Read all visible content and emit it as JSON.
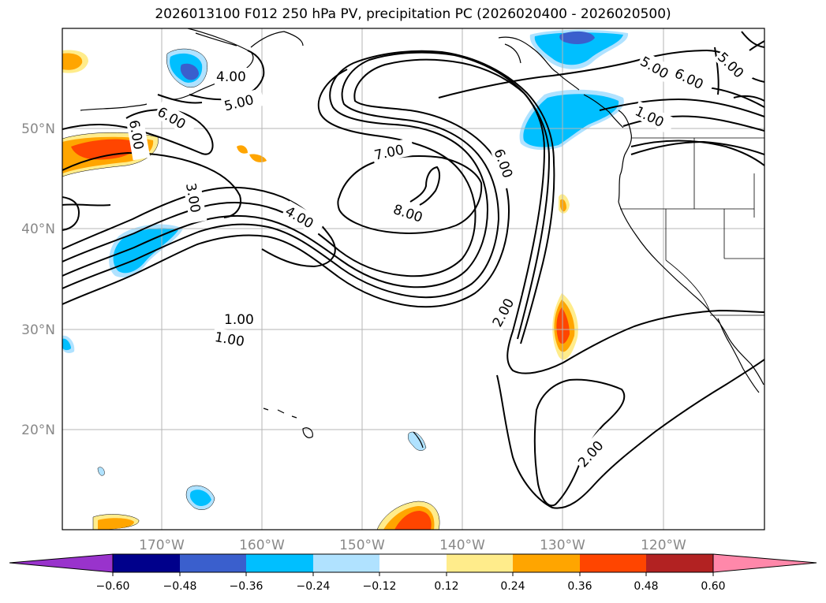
{
  "title": "2026013100 F012 250 hPa PV, precipitation PC (2026020400 - 2026020500)",
  "lat_labels": [
    "50°N",
    "40°N",
    "30°N",
    "20°N"
  ],
  "lon_labels": [
    "170°W",
    "160°W",
    "150°W",
    "140°W",
    "130°W",
    "120°W"
  ],
  "contour_labels": {
    "c1": "1.00",
    "c2": "1.00",
    "c3": "2.00",
    "c4": "2.00",
    "c5": "3.00",
    "c6": "4.00",
    "c7": "4.00",
    "c8": "5.00",
    "c9": "5.00",
    "c10": "5.00",
    "c11": "6.00",
    "c12": "6.00",
    "c13": "6.00",
    "c14": "6.00",
    "c15": "7.00",
    "c16": "8.00",
    "c17": "1.00"
  },
  "colorbar": {
    "ticks": [
      "−0.60",
      "−0.48",
      "−0.36",
      "−0.24",
      "−0.12",
      "0.12",
      "0.24",
      "0.36",
      "0.48",
      "0.60"
    ],
    "colors": [
      "#9933cc",
      "#00008b",
      "#3a5fcd",
      "#00bfff",
      "#b0e2ff",
      "#ffffff",
      "#ffec8b",
      "#ffa500",
      "#ff4500",
      "#b22222",
      "#ff88aa"
    ]
  }
}
